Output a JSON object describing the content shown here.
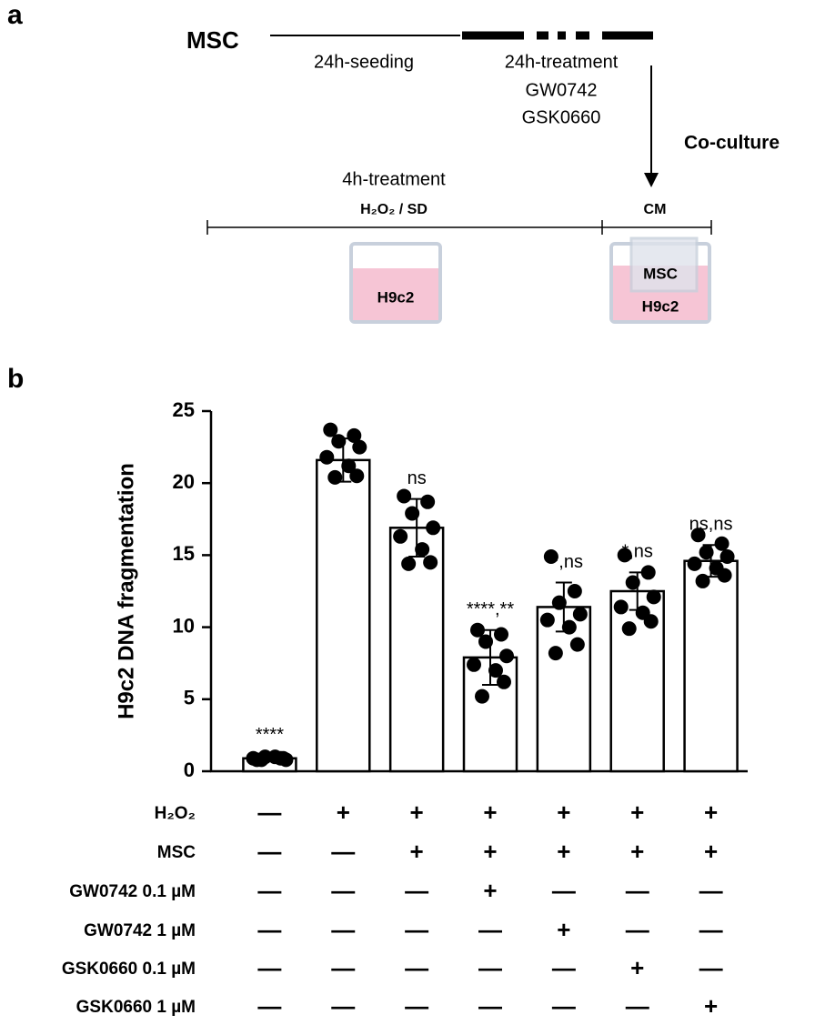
{
  "panel_a": {
    "label": "a",
    "msc": "MSC",
    "seeding": "24h-seeding",
    "treatment24": "24h-treatment",
    "drug1": "GW0742",
    "drug2": "GSK0660",
    "coculture": "Co-culture",
    "treatment4": "4h-treatment",
    "stress": "H₂O₂ / SD",
    "cm": "CM",
    "well1": "H9c2",
    "well2_top": "MSC",
    "well2_bottom": "H9c2"
  },
  "panel_b_label": "b",
  "chart_data": {
    "type": "bar",
    "y_label": "H9c2 DNA fragmentation",
    "categories": [
      null,
      null,
      null,
      null,
      null,
      null,
      null
    ],
    "values": [
      0.9,
      21.6,
      16.9,
      7.9,
      11.4,
      12.5,
      14.6
    ],
    "errors": [
      0.2,
      1.5,
      2.0,
      1.9,
      1.7,
      1.3,
      1.1
    ],
    "points": [
      [
        0.8,
        0.9,
        1.0,
        0.8,
        0.9,
        1.0,
        0.9,
        0.8
      ],
      [
        23.7,
        23.3,
        22.9,
        22.5,
        21.8,
        21.2,
        20.5,
        20.4
      ],
      [
        19.1,
        18.7,
        17.9,
        16.9,
        16.3,
        15.4,
        14.5,
        14.4
      ],
      [
        9.8,
        9.5,
        9.0,
        8.0,
        7.4,
        7.0,
        6.2,
        5.2
      ],
      [
        14.9,
        12.5,
        11.7,
        10.9,
        10.5,
        10.0,
        8.8,
        8.2
      ],
      [
        15.0,
        13.8,
        13.1,
        12.1,
        11.4,
        11.0,
        10.4,
        9.9
      ],
      [
        16.4,
        15.8,
        15.2,
        14.9,
        14.4,
        14.1,
        13.6,
        13.2
      ]
    ],
    "annotations": [
      "****",
      null,
      "ns",
      "****,**",
      "**,ns",
      "*,ns",
      "ns,ns"
    ],
    "color": "#ffffff",
    "point_color": "#000000",
    "ylim": [
      0,
      25
    ],
    "yticks": [
      0,
      5,
      10,
      15,
      20,
      25
    ],
    "conditions": [
      {
        "label": "H₂O₂",
        "cells": [
          "—",
          "+",
          "+",
          "+",
          "+",
          "+",
          "+"
        ]
      },
      {
        "label": "MSC",
        "cells": [
          "—",
          "—",
          "+",
          "+",
          "+",
          "+",
          "+"
        ]
      },
      {
        "label": "GW0742  0.1 µM",
        "cells": [
          "—",
          "—",
          "—",
          "+",
          "—",
          "—",
          "—"
        ]
      },
      {
        "label": "GW0742      1 µM",
        "cells": [
          "—",
          "—",
          "—",
          "—",
          "+",
          "—",
          "—"
        ]
      },
      {
        "label": "GSK0660 0.1 µM",
        "cells": [
          "—",
          "—",
          "—",
          "—",
          "—",
          "+",
          "—"
        ]
      },
      {
        "label": "GSK0660    1 µM",
        "cells": [
          "—",
          "—",
          "—",
          "—",
          "—",
          "—",
          "+"
        ]
      }
    ]
  }
}
